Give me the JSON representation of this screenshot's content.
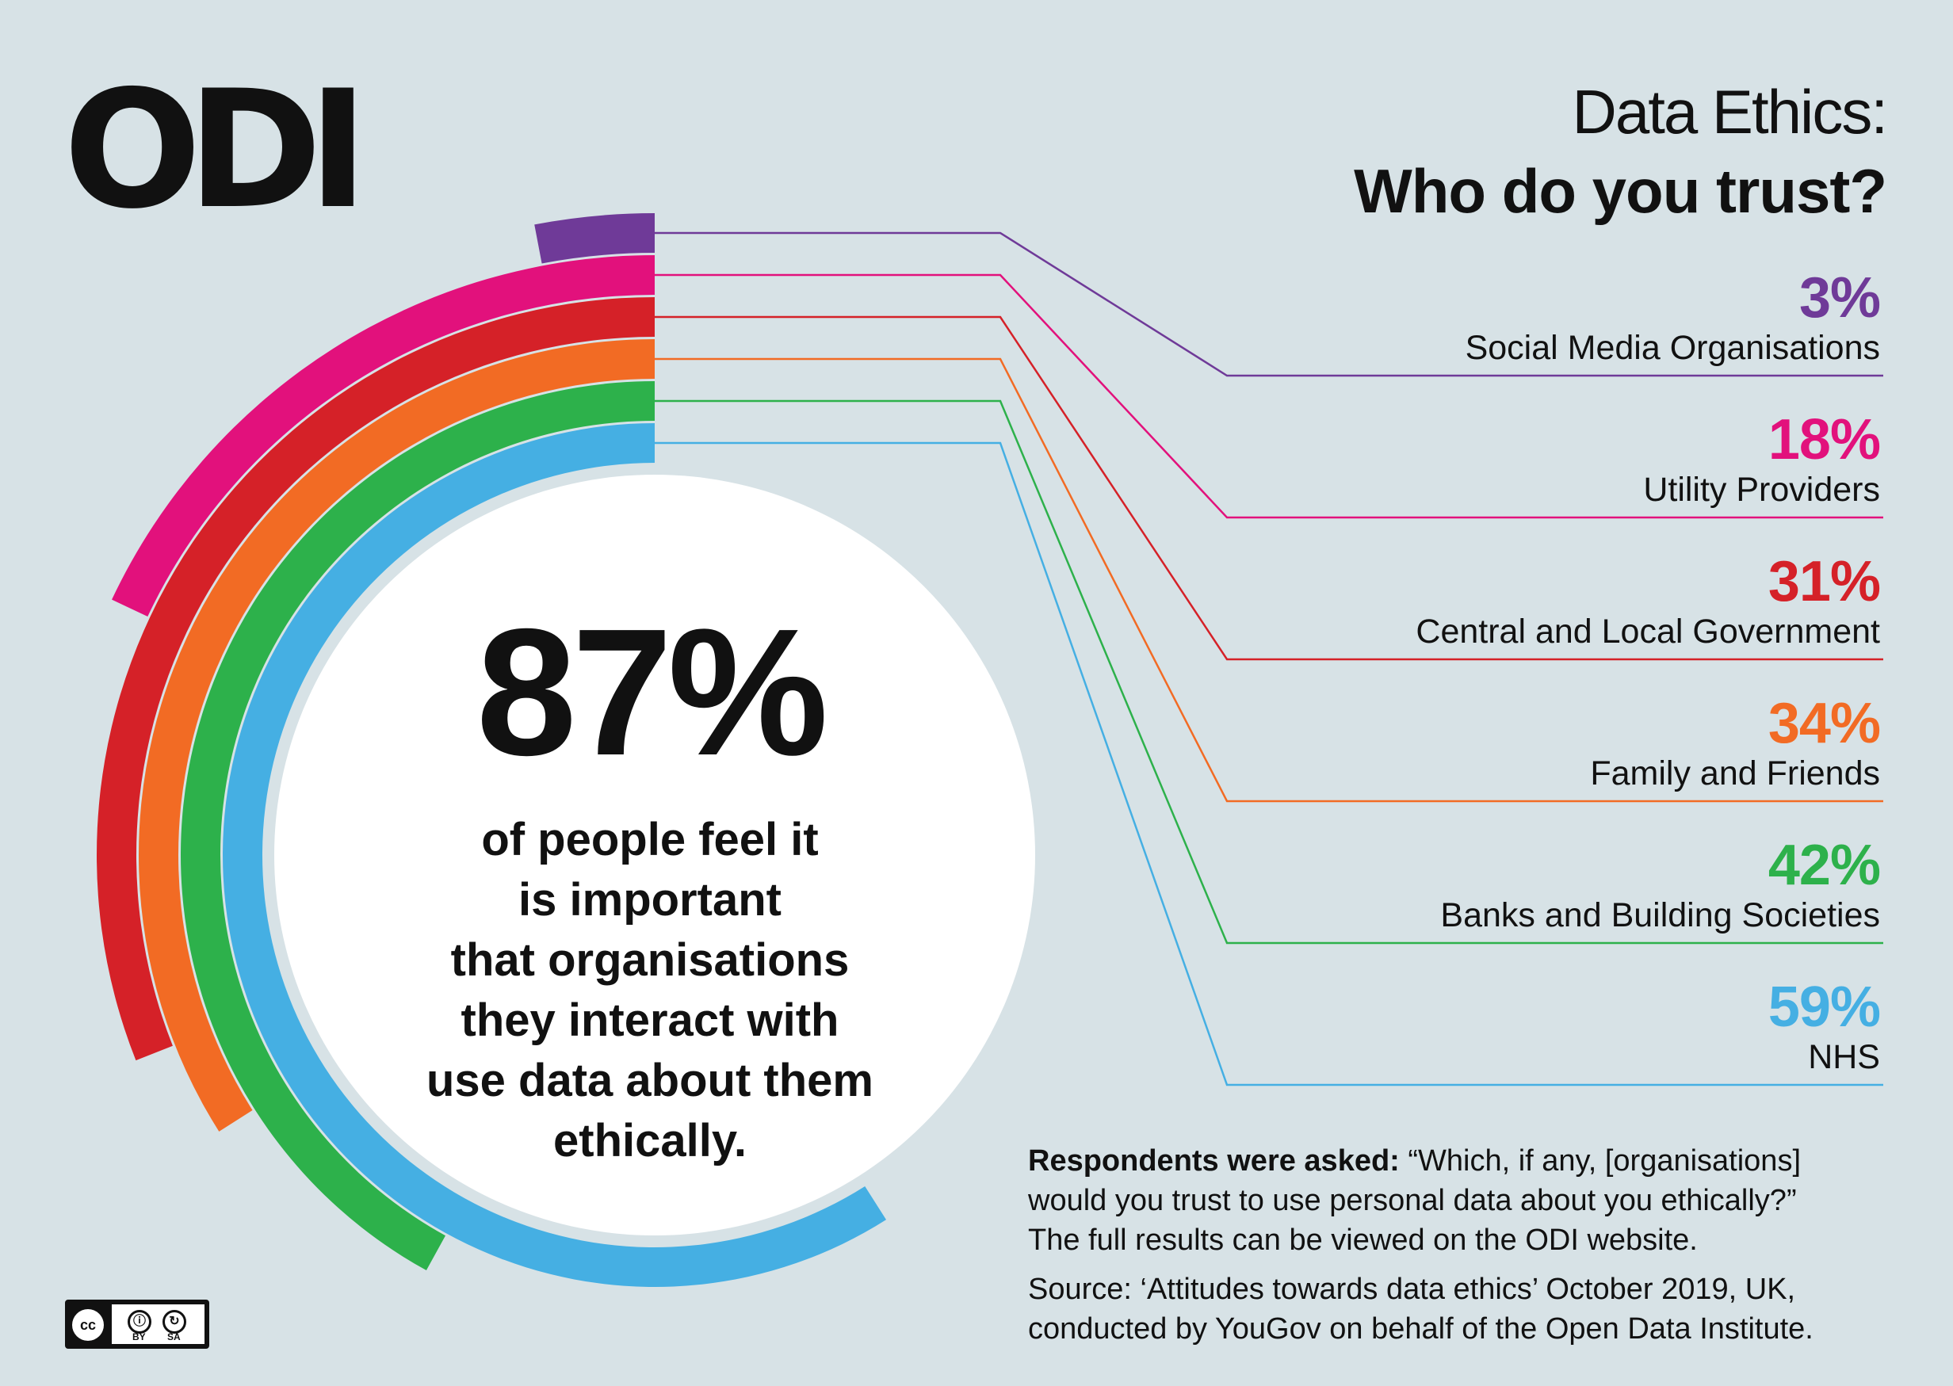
{
  "logo_text": "ODI",
  "header": {
    "title_line1": "Data Ethics:",
    "title_line2": "Who do you trust?"
  },
  "headline": {
    "value": "87%",
    "text_lines": [
      "of people feel it",
      "is important",
      "that organisations",
      "they interact with",
      "use data about them",
      "ethically."
    ]
  },
  "note": {
    "bold": "Respondents were asked:",
    "question_line1": " “Which, if any, [organisations]",
    "question_line2": "would you trust to use personal data about you ethically?”",
    "question_line3": "The full results can be viewed on the ODI website."
  },
  "source": {
    "line1": "Source: ‘Attitudes towards data ethics’ October 2019, UK,",
    "line2": "conducted by YouGov on behalf of the Open Data Institute."
  },
  "license": {
    "by": "BY",
    "sa": "SA",
    "cc": "cc"
  },
  "chart_data": {
    "type": "radial-bar",
    "title": "Who do you trust?",
    "categories": [
      "Social Media Organisations",
      "Utility Providers",
      "Central and Local Government",
      "Family and Friends",
      "Banks and Building Societies",
      "NHS"
    ],
    "values": [
      3,
      18,
      31,
      34,
      42,
      59
    ],
    "value_labels": [
      "3%",
      "18%",
      "31%",
      "34%",
      "42%",
      "59%"
    ],
    "colors": [
      "#6f3a98",
      "#e2117c",
      "#d52128",
      "#f26b24",
      "#2db14b",
      "#45afe3"
    ],
    "background_circle_color": "#ffffff"
  }
}
